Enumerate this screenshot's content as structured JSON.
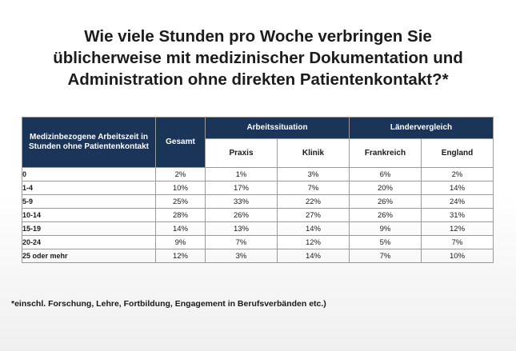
{
  "chart_data": {
    "type": "table",
    "title_lines": [
      "Wie viele Stunden pro Woche verbringen Sie",
      "üblicherweise mit medizinischer Dokumentation und",
      "Administration ohne direkten Patientenkontakt?*"
    ],
    "row_header": "Medizinbezogene Arbeitszeit in Stunden ohne Patientenkontakt",
    "total_header": "Gesamt",
    "groups": [
      {
        "name": "Arbeitssituation",
        "columns": [
          "Praxis",
          "Klinik"
        ]
      },
      {
        "name": "Ländervergleich",
        "columns": [
          "Frankreich",
          "England"
        ]
      }
    ],
    "rows": [
      {
        "label": "0",
        "values": [
          "2%",
          "1%",
          "3%",
          "6%",
          "2%"
        ]
      },
      {
        "label": "1-4",
        "values": [
          "10%",
          "17%",
          "7%",
          "20%",
          "14%"
        ]
      },
      {
        "label": "5-9",
        "values": [
          "25%",
          "33%",
          "22%",
          "26%",
          "24%"
        ]
      },
      {
        "label": "10-14",
        "values": [
          "28%",
          "26%",
          "27%",
          "26%",
          "31%"
        ]
      },
      {
        "label": "15-19",
        "values": [
          "14%",
          "13%",
          "14%",
          "9%",
          "12%"
        ]
      },
      {
        "label": "20-24",
        "values": [
          "9%",
          "7%",
          "12%",
          "5%",
          "7%"
        ]
      },
      {
        "label": "25 oder mehr",
        "values": [
          "12%",
          "3%",
          "14%",
          "7%",
          "10%"
        ]
      }
    ],
    "footnote": "*einschl. Forschung, Lehre, Fortbildung, Engagement in Berufsverbänden etc.)"
  },
  "colors": {
    "header_background": "#1b3558",
    "header_text": "#ffffff",
    "border": "#9a9a9a"
  }
}
